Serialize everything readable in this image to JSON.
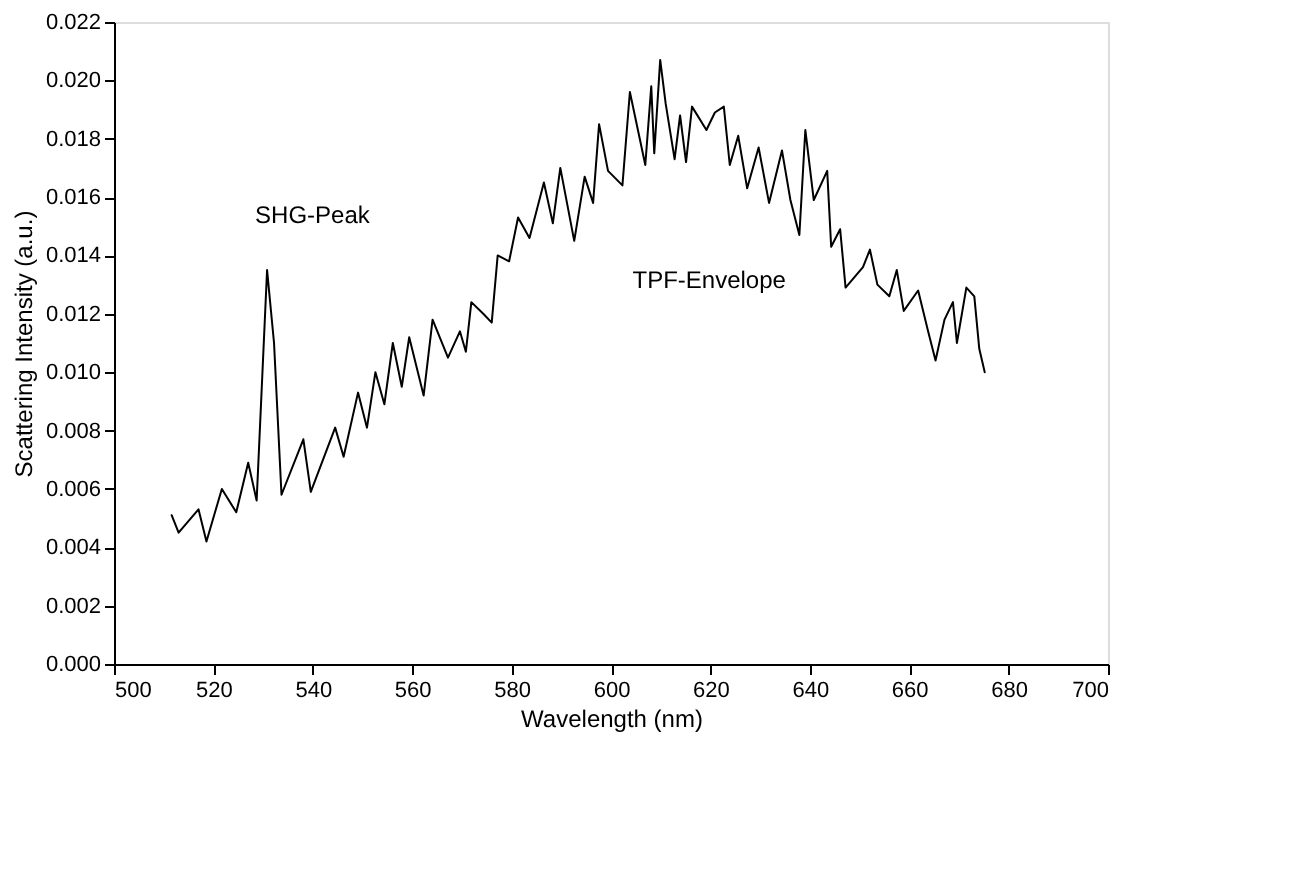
{
  "chart_data": {
    "type": "line",
    "xlabel": "Wavelength (nm)",
    "ylabel": "Scattering Intensity (a.u.)",
    "x": [
      511.6,
      513,
      517,
      518.6,
      521.7,
      524.6,
      527,
      528.7,
      530.8,
      532.2,
      533.7,
      538.1,
      539.6,
      544.5,
      546.2,
      549.1,
      550.9,
      552.6,
      554.4,
      556.1,
      557.9,
      559.4,
      562.3,
      564.1,
      567.2,
      569.6,
      570.8,
      571.9,
      574.3,
      576,
      577.2,
      579.5,
      581.3,
      583.6,
      586.5,
      588.3,
      589.8,
      592.6,
      594.7,
      596.4,
      597.6,
      599.4,
      602.3,
      603.8,
      606.9,
      608.1,
      608.7,
      609.9,
      611,
      612.8,
      613.9,
      615.1,
      616.3,
      619.2,
      620.9,
      622.7,
      623.9,
      625.6,
      627.4,
      629.7,
      631.8,
      634.4,
      636.1,
      637.9,
      639.1,
      640.8,
      643.5,
      644.3,
      646.1,
      647.2,
      650.7,
      652.1,
      653.6,
      656,
      657.5,
      658.9,
      661.8,
      663.8,
      665.3,
      667.1,
      668.8,
      669.6,
      671.5,
      673.1,
      674.1,
      675.2
    ],
    "series": [
      {
        "color": "#000000",
        "values": [
          0.0051,
          0.0045,
          0.0053,
          0.0042,
          0.006,
          0.0052,
          0.0069,
          0.0056,
          0.0135,
          0.011,
          0.0058,
          0.0077,
          0.0059,
          0.0081,
          0.0071,
          0.0093,
          0.0081,
          0.01,
          0.0089,
          0.011,
          0.0095,
          0.0112,
          0.0092,
          0.0118,
          0.0105,
          0.0114,
          0.0107,
          0.0124,
          0.012,
          0.0117,
          0.014,
          0.0138,
          0.0153,
          0.0146,
          0.0165,
          0.0151,
          0.017,
          0.0145,
          0.0167,
          0.0158,
          0.0185,
          0.0169,
          0.0164,
          0.0196,
          0.0171,
          0.0198,
          0.0175,
          0.0207,
          0.0192,
          0.0173,
          0.0188,
          0.0172,
          0.0191,
          0.0183,
          0.0189,
          0.0191,
          0.0171,
          0.0181,
          0.0163,
          0.0177,
          0.0158,
          0.0176,
          0.0159,
          0.0147,
          0.0183,
          0.0159,
          0.0169,
          0.0143,
          0.0149,
          0.0129,
          0.0136,
          0.0142,
          0.013,
          0.0126,
          0.0135,
          0.0121,
          0.0128,
          0.0114,
          0.0104,
          0.0118,
          0.0124,
          0.011,
          0.0129,
          0.0126,
          0.0108,
          0.01
        ]
      }
    ],
    "xlim": [
      500,
      700
    ],
    "xticks": [
      500,
      520,
      540,
      560,
      580,
      600,
      620,
      640,
      660,
      680,
      700
    ],
    "ylim": [
      0,
      0.022
    ],
    "yticks": [
      {
        "value": 0,
        "label": "0.000"
      },
      {
        "value": 0.002,
        "label": "0.002"
      },
      {
        "value": 0.004,
        "label": "0.004"
      },
      {
        "value": 0.006,
        "label": "0.006"
      },
      {
        "value": 0.008,
        "label": "0.008"
      },
      {
        "value": 0.01,
        "label": "0.010"
      },
      {
        "value": 0.012,
        "label": "0.012"
      },
      {
        "value": 0.014,
        "label": "0.014"
      },
      {
        "value": 0.016,
        "label": "0.016"
      },
      {
        "value": 0.018,
        "label": "0.018"
      },
      {
        "value": 0.02,
        "label": "0.020"
      },
      {
        "value": 0.022,
        "label": "0.022"
      }
    ],
    "annotations": [
      "SHG-Peak",
      "TPF-Envelope"
    ],
    "grid": false,
    "marker": "none",
    "line_style": "solid"
  }
}
